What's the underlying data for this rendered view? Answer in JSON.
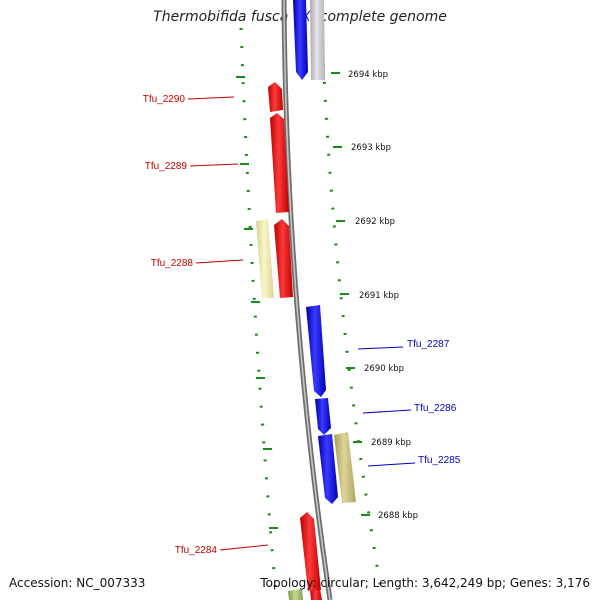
{
  "title": {
    "before": "Thermobifida fusca ",
    "highlight": "YX",
    "after": ", complete genome"
  },
  "footer": {
    "accession": "Accession: NC_007333",
    "summary": "Topology: circular; Length: 3,642,249 bp; Genes: 3,176"
  },
  "ticks": [
    "2694 kbp",
    "2693 kbp",
    "2692 kbp",
    "2691 kbp",
    "2690 kbp",
    "2689 kbp",
    "2688 kbp"
  ],
  "genes": [
    {
      "label": "Tfu_2290",
      "strand": "forward",
      "color": "#e00000"
    },
    {
      "label": "Tfu_2289",
      "strand": "forward",
      "color": "#e00000"
    },
    {
      "label": "Tfu_2288",
      "strand": "forward",
      "color": "#e00000"
    },
    {
      "label": "Tfu_2287",
      "strand": "reverse",
      "color": "#0000e0"
    },
    {
      "label": "Tfu_2286",
      "strand": "reverse",
      "color": "#0000e0"
    },
    {
      "label": "Tfu_2285",
      "strand": "reverse",
      "color": "#0000e0"
    },
    {
      "label": "Tfu_2284",
      "strand": "forward",
      "color": "#e00000"
    }
  ],
  "colors": {
    "forward_label": "#c00000",
    "reverse_label": "#0000c0",
    "tick_marks": "#1a8a1a",
    "backbone": "#7a7a7a",
    "other_feature_pale": "#f2ecaa",
    "other_feature_khaki": "#c9c07a",
    "other_feature_grey": "#c8c8d0",
    "other_feature_green": "#a8c070"
  }
}
